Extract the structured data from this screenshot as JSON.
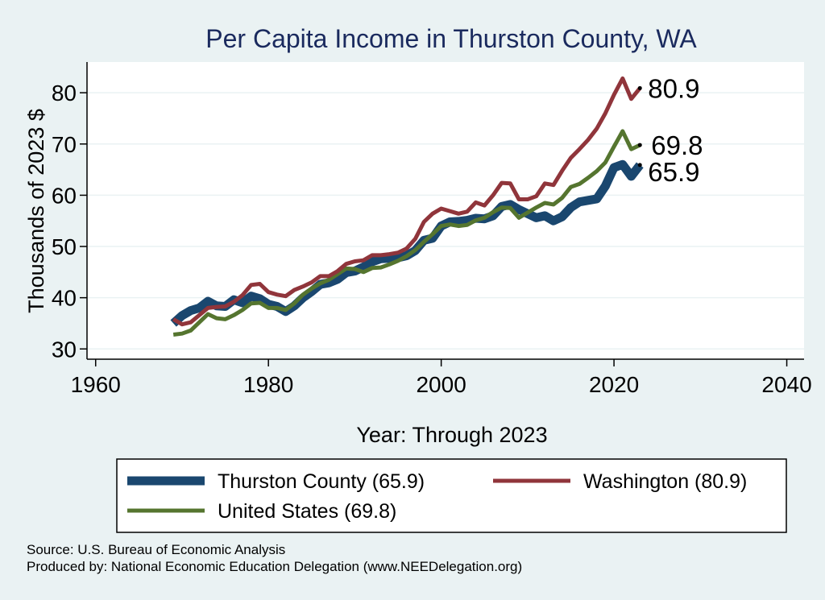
{
  "chart_data": {
    "type": "line",
    "title": "Per Capita Income in Thurston County, WA",
    "xlabel": "Year: Through 2023",
    "ylabel": "Thousands of 2023 $",
    "xlim": [
      1959,
      2042
    ],
    "ylim": [
      28,
      86
    ],
    "xticks": [
      1960,
      1980,
      2000,
      2020,
      2040
    ],
    "yticks": [
      30,
      40,
      50,
      60,
      70,
      80
    ],
    "grid": true,
    "legend_position": "bottom",
    "x": [
      1969,
      1970,
      1971,
      1972,
      1973,
      1974,
      1975,
      1976,
      1977,
      1978,
      1979,
      1980,
      1981,
      1982,
      1983,
      1984,
      1985,
      1986,
      1987,
      1988,
      1989,
      1990,
      1991,
      1992,
      1993,
      1994,
      1995,
      1996,
      1997,
      1998,
      1999,
      2000,
      2001,
      2002,
      2003,
      2004,
      2005,
      2006,
      2007,
      2008,
      2009,
      2010,
      2011,
      2012,
      2013,
      2014,
      2015,
      2016,
      2017,
      2018,
      2019,
      2020,
      2021,
      2022,
      2023
    ],
    "series": [
      {
        "name": "Thurston County",
        "legend_label": "Thurston County (65.9)",
        "color": "#1a476f",
        "end_label": "65.9",
        "values": [
          35.0,
          36.5,
          37.5,
          38.0,
          39.3,
          38.4,
          38.3,
          39.6,
          39.0,
          40.3,
          39.8,
          38.7,
          38.3,
          37.3,
          38.4,
          40.0,
          41.2,
          42.6,
          42.9,
          43.6,
          44.9,
          45.2,
          46.0,
          47.0,
          47.6,
          47.7,
          47.8,
          48.2,
          49.2,
          51.2,
          51.6,
          54.0,
          54.8,
          54.9,
          55.1,
          55.5,
          55.4,
          56.0,
          57.8,
          58.2,
          57.2,
          56.4,
          55.6,
          56.0,
          55.0,
          55.8,
          57.6,
          58.7,
          59.0,
          59.3,
          61.8,
          65.4,
          66.0,
          63.7,
          65.9
        ]
      },
      {
        "name": "Washington",
        "legend_label": "Washington (80.9)",
        "color": "#90353b",
        "end_label": "80.9",
        "values": [
          35.8,
          34.8,
          35.2,
          36.6,
          38.0,
          38.2,
          38.3,
          39.2,
          40.5,
          42.5,
          42.7,
          41.1,
          40.6,
          40.3,
          41.5,
          42.2,
          43.0,
          44.2,
          44.2,
          45.2,
          46.6,
          47.1,
          47.3,
          48.3,
          48.3,
          48.5,
          48.8,
          49.6,
          51.5,
          54.8,
          56.4,
          57.4,
          56.9,
          56.4,
          56.8,
          58.6,
          58.0,
          60.0,
          62.4,
          62.3,
          59.2,
          59.2,
          59.8,
          62.3,
          62.0,
          64.8,
          67.3,
          69.0,
          70.8,
          73.0,
          76.0,
          79.6,
          82.8,
          78.8,
          80.9
        ]
      },
      {
        "name": "United States",
        "legend_label": "United States (69.8)",
        "color": "#55752f",
        "end_label": "69.8",
        "values": [
          32.8,
          33.0,
          33.6,
          35.2,
          36.8,
          36.0,
          35.8,
          36.6,
          37.6,
          38.9,
          39.0,
          38.0,
          38.0,
          37.6,
          38.9,
          40.6,
          41.8,
          42.8,
          43.5,
          44.6,
          45.7,
          45.6,
          45.0,
          45.8,
          45.9,
          46.5,
          47.2,
          48.1,
          49.3,
          50.9,
          52.4,
          54.0,
          54.3,
          54.0,
          54.2,
          55.1,
          55.6,
          56.7,
          57.6,
          57.5,
          55.6,
          56.6,
          57.6,
          58.5,
          58.2,
          59.5,
          61.6,
          62.2,
          63.4,
          64.7,
          66.4,
          69.5,
          72.5,
          69.0,
          69.8
        ]
      }
    ]
  },
  "source_note": "Source: U.S. Bureau of Economic Analysis",
  "produced_note": "Produced by: National Economic Education Delegation (www.NEEDelegation.org)"
}
